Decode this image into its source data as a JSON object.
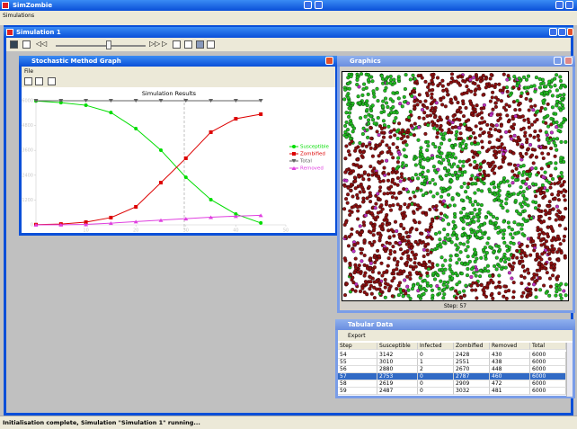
{
  "app": {
    "title": "SimZombie",
    "menu": [
      "Simulations"
    ],
    "status": "Initialisation complete, Simulation \"Simulation 1\" running..."
  },
  "sim_window": {
    "title": "Simulation 1"
  },
  "graph_window": {
    "title": "Stochastic Method Graph",
    "menu": [
      "File"
    ]
  },
  "chart_data": {
    "type": "line",
    "title": "Simulation Results",
    "x": [
      0,
      5,
      10,
      15,
      20,
      25,
      30,
      35,
      40,
      45
    ],
    "xlim": [
      0,
      50
    ],
    "xticks": [
      10,
      20,
      30,
      40,
      50
    ],
    "ylim": [
      0,
      6000
    ],
    "yticks": [
      0,
      1200,
      2400,
      3600,
      4800,
      6000
    ],
    "legend": "right",
    "series": [
      {
        "name": "Susceptible",
        "color": "#00dd00",
        "marker": "circle",
        "values": [
          5990,
          5910,
          5780,
          5430,
          4650,
          3610,
          2300,
          1220,
          520,
          90
        ]
      },
      {
        "name": "Zombified",
        "color": "#dd0000",
        "marker": "square",
        "values": [
          10,
          40,
          130,
          350,
          870,
          2040,
          3220,
          4480,
          5130,
          5350
        ]
      },
      {
        "name": "Total",
        "color": "#606060",
        "marker": "triangle-down",
        "values": [
          6000,
          6000,
          6000,
          6000,
          6000,
          6000,
          6000,
          6000,
          6000,
          6000
        ]
      },
      {
        "name": "Removed",
        "color": "#e040e0",
        "marker": "triangle-up",
        "values": [
          0,
          5,
          20,
          80,
          160,
          230,
          300,
          370,
          420,
          460
        ]
      }
    ]
  },
  "graphics_window": {
    "title": "Graphics",
    "step_text": "Step:  57"
  },
  "table_window": {
    "title": "Tabular Data",
    "menu": [
      "Export"
    ],
    "columns": [
      "Step",
      "Susceptible",
      "Infected",
      "Zombified",
      "Removed",
      "Total"
    ],
    "rows": [
      [
        54,
        3142,
        0,
        2428,
        430,
        6000
      ],
      [
        55,
        3010,
        1,
        2551,
        438,
        6000
      ],
      [
        56,
        2880,
        2,
        2670,
        448,
        6000
      ],
      [
        57,
        2753,
        0,
        2787,
        460,
        6000
      ],
      [
        58,
        2619,
        0,
        2909,
        472,
        6000
      ],
      [
        59,
        2487,
        0,
        3032,
        481,
        6000
      ]
    ],
    "selected_row": 3
  }
}
